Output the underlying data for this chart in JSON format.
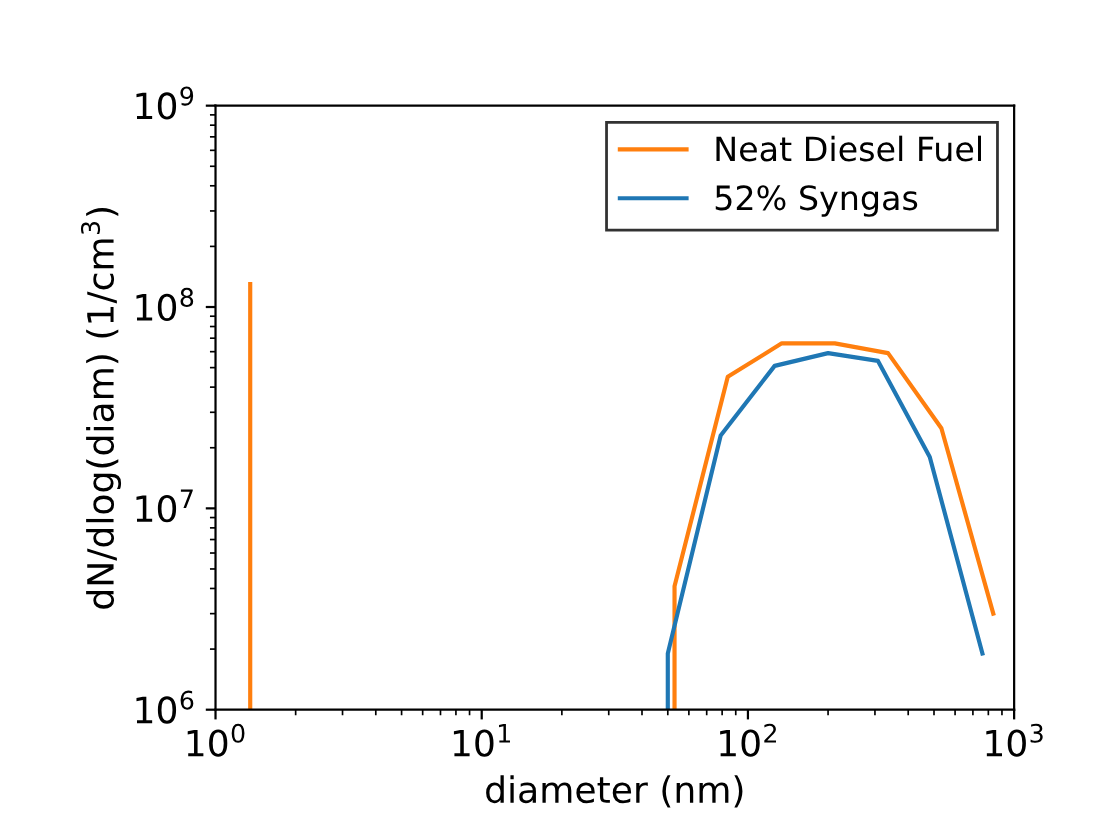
{
  "chart_data": {
    "type": "line",
    "xlabel": "diameter (nm)",
    "ylabel": "dN/dlog(diam) (1/cm$^{3}$)",
    "log": "xy",
    "xlim": [
      1,
      1000
    ],
    "ylim": [
      1000000,
      1000000000
    ],
    "xticks": [
      {
        "value": 1,
        "label": "10$^{0}$"
      },
      {
        "value": 10,
        "label": "10$^{1}$"
      },
      {
        "value": 100,
        "label": "10$^{2}$"
      },
      {
        "value": 1000,
        "label": "10$^{3}$"
      }
    ],
    "yticks": [
      {
        "value": 1000000,
        "label": "10$^{6}$"
      },
      {
        "value": 10000000,
        "label": "10$^{7}$"
      },
      {
        "value": 100000000,
        "label": "10$^{8}$"
      },
      {
        "value": 1000000000,
        "label": "10$^{9}$"
      }
    ],
    "legend": "top right",
    "grid": false,
    "series": [
      {
        "name": "Neat Diesel Fuel",
        "color": "#ff7f0e",
        "x": [
          1.35,
          1.35,
          20,
          53,
          53,
          84,
          134,
          212,
          336,
          533,
          835
        ],
        "values": [
          130000000,
          1000000,
          null,
          1000000,
          4100000,
          45000000,
          66000000,
          66000000,
          59000000,
          25000000,
          3000000
        ]
      },
      {
        "name": "52% Syngas",
        "color": "#1f77b4",
        "x": [
          50,
          50,
          79,
          126,
          200,
          308,
          482,
          760
        ],
        "values": [
          1000000,
          1900000,
          23000000,
          51000000,
          59000000,
          54000000,
          18000000,
          1900000
        ]
      }
    ]
  }
}
